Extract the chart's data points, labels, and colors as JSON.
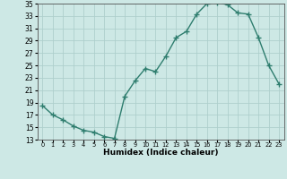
{
  "xlabel": "Humidex (Indice chaleur)",
  "x_values": [
    0,
    1,
    2,
    3,
    4,
    5,
    6,
    7,
    8,
    9,
    10,
    11,
    12,
    13,
    14,
    15,
    16,
    17,
    18,
    19,
    20,
    21,
    22,
    23
  ],
  "y_values": [
    18.5,
    17.0,
    16.2,
    15.2,
    14.5,
    14.2,
    13.5,
    13.2,
    20.0,
    22.5,
    24.5,
    24.0,
    26.5,
    29.5,
    30.5,
    33.3,
    35.0,
    35.2,
    34.8,
    33.5,
    33.3,
    29.5,
    25.0,
    22.0
  ],
  "line_color": "#2e7d6e",
  "bg_color": "#cde8e5",
  "grid_color": "#aecfcc",
  "ylim_min": 13,
  "ylim_max": 35,
  "yticks": [
    13,
    15,
    17,
    19,
    21,
    23,
    25,
    27,
    29,
    31,
    33,
    35
  ],
  "marker": "+"
}
